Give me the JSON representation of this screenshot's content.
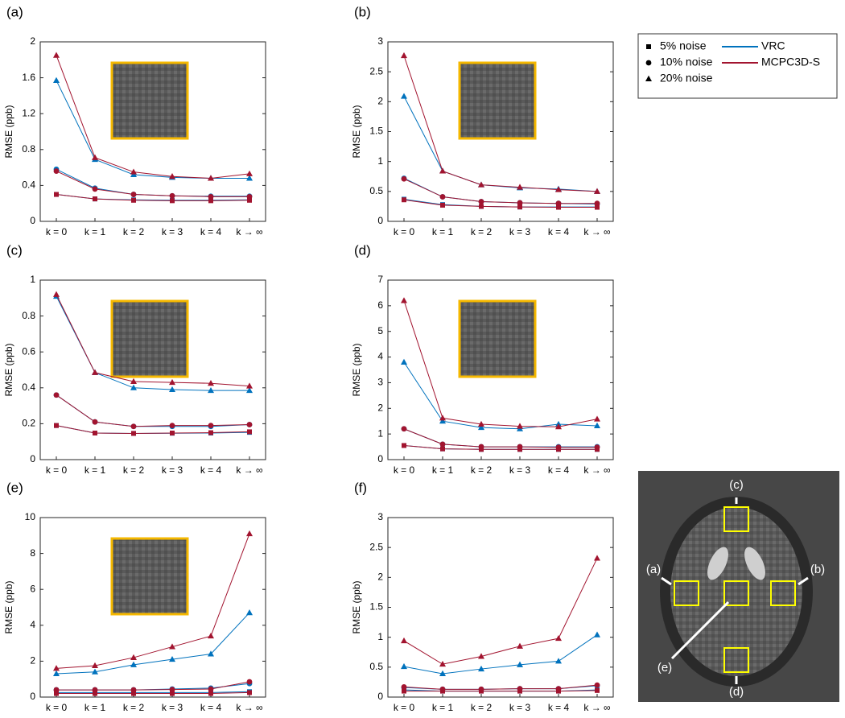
{
  "legend": {
    "markers": [
      {
        "label": "5% noise",
        "marker": "square"
      },
      {
        "label": "10% noise",
        "marker": "circle"
      },
      {
        "label": "20% noise",
        "marker": "triangle"
      }
    ],
    "lines": [
      {
        "label": "VRC",
        "color": "#0072bd"
      },
      {
        "label": "MCPC3D-S",
        "color": "#a2142f"
      }
    ]
  },
  "chart_data": [
    {
      "type": "line",
      "label": "(a)",
      "ylabel": "RMSE (ppb)",
      "categories": [
        "k = 0",
        "k = 1",
        "k = 2",
        "k = 3",
        "k = 4",
        "k → ∞"
      ],
      "ylim": [
        0,
        2
      ],
      "yticks": [
        0,
        0.4,
        0.8,
        1.2,
        1.6,
        2
      ],
      "series": [
        {
          "color": "#0072bd",
          "marker": "square",
          "values": [
            0.3,
            0.25,
            0.24,
            0.235,
            0.235,
            0.24
          ]
        },
        {
          "color": "#0072bd",
          "marker": "circle",
          "values": [
            0.58,
            0.37,
            0.3,
            0.285,
            0.28,
            0.28
          ]
        },
        {
          "color": "#0072bd",
          "marker": "triangle",
          "values": [
            1.57,
            0.69,
            0.52,
            0.49,
            0.48,
            0.48
          ]
        },
        {
          "color": "#a2142f",
          "marker": "square",
          "values": [
            0.3,
            0.25,
            0.235,
            0.23,
            0.23,
            0.235
          ]
        },
        {
          "color": "#a2142f",
          "marker": "circle",
          "values": [
            0.56,
            0.36,
            0.3,
            0.285,
            0.275,
            0.275
          ]
        },
        {
          "color": "#a2142f",
          "marker": "triangle",
          "values": [
            1.85,
            0.71,
            0.55,
            0.5,
            0.48,
            0.53
          ]
        }
      ]
    },
    {
      "type": "line",
      "label": "(b)",
      "ylabel": "RMSE (ppb)",
      "categories": [
        "k = 0",
        "k = 1",
        "k = 2",
        "k = 3",
        "k = 4",
        "k → ∞"
      ],
      "ylim": [
        0,
        3
      ],
      "yticks": [
        0,
        0.5,
        1,
        1.5,
        2,
        2.5,
        3
      ],
      "series": [
        {
          "color": "#0072bd",
          "marker": "square",
          "values": [
            0.37,
            0.28,
            0.25,
            0.24,
            0.24,
            0.24
          ]
        },
        {
          "color": "#0072bd",
          "marker": "circle",
          "values": [
            0.72,
            0.41,
            0.33,
            0.31,
            0.3,
            0.29
          ]
        },
        {
          "color": "#0072bd",
          "marker": "triangle",
          "values": [
            2.09,
            0.84,
            0.61,
            0.56,
            0.54,
            0.5
          ]
        },
        {
          "color": "#a2142f",
          "marker": "square",
          "values": [
            0.36,
            0.27,
            0.25,
            0.24,
            0.235,
            0.235
          ]
        },
        {
          "color": "#a2142f",
          "marker": "circle",
          "values": [
            0.71,
            0.41,
            0.33,
            0.31,
            0.3,
            0.3
          ]
        },
        {
          "color": "#a2142f",
          "marker": "triangle",
          "values": [
            2.77,
            0.84,
            0.61,
            0.57,
            0.53,
            0.5
          ]
        }
      ]
    },
    {
      "type": "line",
      "label": "(c)",
      "ylabel": "RMSE (ppb)",
      "categories": [
        "k = 0",
        "k = 1",
        "k = 2",
        "k = 3",
        "k = 4",
        "k → ∞"
      ],
      "ylim": [
        0,
        1
      ],
      "yticks": [
        0,
        0.2,
        0.4,
        0.6,
        0.8,
        1
      ],
      "series": [
        {
          "color": "#0072bd",
          "marker": "square",
          "values": [
            0.19,
            0.148,
            0.146,
            0.147,
            0.148,
            0.152
          ]
        },
        {
          "color": "#0072bd",
          "marker": "circle",
          "values": [
            0.36,
            0.21,
            0.185,
            0.185,
            0.185,
            0.195
          ]
        },
        {
          "color": "#0072bd",
          "marker": "triangle",
          "values": [
            0.91,
            0.485,
            0.4,
            0.39,
            0.385,
            0.385
          ]
        },
        {
          "color": "#a2142f",
          "marker": "square",
          "values": [
            0.19,
            0.148,
            0.146,
            0.148,
            0.15,
            0.155
          ]
        },
        {
          "color": "#a2142f",
          "marker": "circle",
          "values": [
            0.36,
            0.21,
            0.185,
            0.19,
            0.19,
            0.195
          ]
        },
        {
          "color": "#a2142f",
          "marker": "triangle",
          "values": [
            0.92,
            0.485,
            0.435,
            0.43,
            0.425,
            0.41
          ]
        }
      ]
    },
    {
      "type": "line",
      "label": "(d)",
      "ylabel": "RMSE (ppb)",
      "categories": [
        "k = 0",
        "k = 1",
        "k = 2",
        "k = 3",
        "k = 4",
        "k → ∞"
      ],
      "ylim": [
        0,
        7
      ],
      "yticks": [
        0,
        1,
        2,
        3,
        4,
        5,
        6,
        7
      ],
      "series": [
        {
          "color": "#0072bd",
          "marker": "square",
          "values": [
            0.55,
            0.42,
            0.4,
            0.4,
            0.4,
            0.4
          ]
        },
        {
          "color": "#0072bd",
          "marker": "circle",
          "values": [
            1.2,
            0.6,
            0.5,
            0.5,
            0.5,
            0.5
          ]
        },
        {
          "color": "#0072bd",
          "marker": "triangle",
          "values": [
            3.8,
            1.5,
            1.25,
            1.2,
            1.38,
            1.32
          ]
        },
        {
          "color": "#a2142f",
          "marker": "square",
          "values": [
            0.55,
            0.42,
            0.4,
            0.4,
            0.4,
            0.4
          ]
        },
        {
          "color": "#a2142f",
          "marker": "circle",
          "values": [
            1.2,
            0.6,
            0.5,
            0.5,
            0.48,
            0.48
          ]
        },
        {
          "color": "#a2142f",
          "marker": "triangle",
          "values": [
            6.2,
            1.62,
            1.38,
            1.3,
            1.28,
            1.58
          ]
        }
      ]
    },
    {
      "type": "line",
      "label": "(e)",
      "ylabel": "RMSE (ppb)",
      "categories": [
        "k = 0",
        "k = 1",
        "k = 2",
        "k = 3",
        "k = 4",
        "k → ∞"
      ],
      "ylim": [
        0,
        10
      ],
      "yticks": [
        0,
        2,
        4,
        6,
        8,
        10
      ],
      "series": [
        {
          "color": "#0072bd",
          "marker": "square",
          "values": [
            0.25,
            0.25,
            0.25,
            0.25,
            0.25,
            0.3
          ]
        },
        {
          "color": "#0072bd",
          "marker": "circle",
          "values": [
            0.4,
            0.4,
            0.4,
            0.45,
            0.5,
            0.75
          ]
        },
        {
          "color": "#0072bd",
          "marker": "triangle",
          "values": [
            1.3,
            1.4,
            1.8,
            2.1,
            2.4,
            4.7
          ]
        },
        {
          "color": "#a2142f",
          "marker": "square",
          "values": [
            0.2,
            0.2,
            0.2,
            0.2,
            0.2,
            0.25
          ]
        },
        {
          "color": "#a2142f",
          "marker": "circle",
          "values": [
            0.4,
            0.4,
            0.4,
            0.42,
            0.45,
            0.85
          ]
        },
        {
          "color": "#a2142f",
          "marker": "triangle",
          "values": [
            1.6,
            1.75,
            2.2,
            2.8,
            3.4,
            9.1
          ]
        }
      ]
    },
    {
      "type": "line",
      "label": "(f)",
      "ylabel": "RMSE (ppb)",
      "categories": [
        "k = 0",
        "k = 1",
        "k = 2",
        "k = 3",
        "k = 4",
        "k → ∞"
      ],
      "ylim": [
        0,
        3
      ],
      "yticks": [
        0,
        0.5,
        1,
        1.5,
        2,
        2.5,
        3
      ],
      "series": [
        {
          "color": "#0072bd",
          "marker": "square",
          "values": [
            0.12,
            0.1,
            0.1,
            0.1,
            0.1,
            0.12
          ]
        },
        {
          "color": "#0072bd",
          "marker": "circle",
          "values": [
            0.16,
            0.13,
            0.13,
            0.14,
            0.14,
            0.19
          ]
        },
        {
          "color": "#0072bd",
          "marker": "triangle",
          "values": [
            0.51,
            0.39,
            0.47,
            0.54,
            0.6,
            1.04
          ]
        },
        {
          "color": "#a2142f",
          "marker": "square",
          "values": [
            0.1,
            0.1,
            0.1,
            0.1,
            0.1,
            0.11
          ]
        },
        {
          "color": "#a2142f",
          "marker": "circle",
          "values": [
            0.17,
            0.13,
            0.13,
            0.14,
            0.14,
            0.2
          ]
        },
        {
          "color": "#a2142f",
          "marker": "triangle",
          "values": [
            0.94,
            0.55,
            0.68,
            0.85,
            0.98,
            2.32
          ]
        }
      ]
    }
  ],
  "brain_map": {
    "labels": [
      "(c)",
      "(a)",
      "(b)",
      "(e)",
      "(d)"
    ]
  }
}
